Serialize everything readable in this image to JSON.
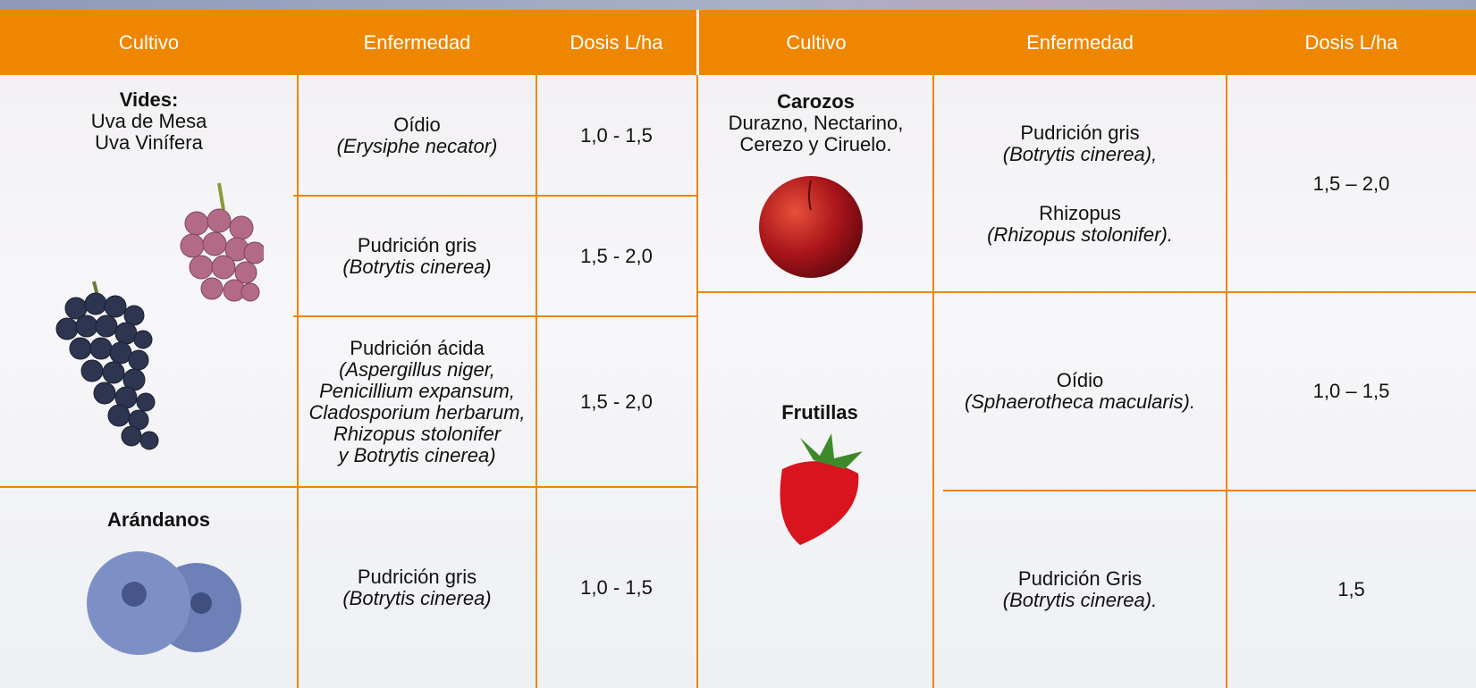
{
  "left_table": {
    "headers": [
      "Cultivo",
      "Enfermedad",
      "Dosis L/ha"
    ],
    "crops": [
      {
        "name": "Vides:",
        "varieties": [
          "Uva de Mesa",
          "Uva Vinífera"
        ],
        "diseases": [
          {
            "name": "Oídio",
            "pathogen": [
              "(Erysiphe necator)"
            ],
            "dose": "1,0 - 1,5"
          },
          {
            "name": "Pudrición gris",
            "pathogen": [
              "(Botrytis cinerea)"
            ],
            "dose": "1,5 - 2,0"
          },
          {
            "name": "Pudrición ácida",
            "pathogen": [
              "(Aspergillus niger,",
              "Penicillium expansum,",
              "Cladosporium herbarum,",
              "Rhizopus stolonifer",
              "y Botrytis cinerea)"
            ],
            "dose": "1,5 - 2,0"
          }
        ]
      },
      {
        "name": "Arándanos",
        "varieties": [],
        "diseases": [
          {
            "name": "Pudrición gris",
            "pathogen": [
              "(Botrytis cinerea)"
            ],
            "dose": "1,0 - 1,5"
          }
        ]
      }
    ]
  },
  "right_table": {
    "headers": [
      "Cultivo",
      "Enfermedad",
      "Dosis L/ha"
    ],
    "crops": [
      {
        "name": "Carozos",
        "varieties": [
          "Durazno, Nectarino,",
          "Cerezo y Ciruelo."
        ],
        "diseases": [
          {
            "name": "Pudrición gris",
            "pathogen": [
              "(Botrytis cinerea),"
            ],
            "name2": "Rhizopus",
            "pathogen2": [
              "(Rhizopus stolonifer)."
            ],
            "dose": "1,5 – 2,0"
          }
        ]
      },
      {
        "name": "Frutillas",
        "varieties": [],
        "diseases": [
          {
            "name": "Oídio",
            "pathogen": [
              "(Sphaerotheca macularis)."
            ],
            "dose": "1,0 – 1,5"
          },
          {
            "name": "Pudrición Gris",
            "pathogen": [
              "(Botrytis cinerea)."
            ],
            "dose": "1,5"
          }
        ]
      }
    ]
  }
}
